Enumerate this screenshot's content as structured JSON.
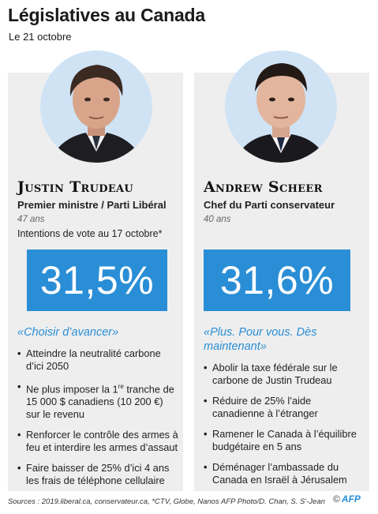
{
  "header": {
    "title": "Législatives au Canada",
    "date": "Le 21 octobre"
  },
  "candidates": [
    {
      "name": "Justin Trudeau",
      "role": "Premier ministre / Parti Libéral",
      "age": "47 ans",
      "intentions_label": "Intentions de vote au 17 octobre*",
      "score": "31,5%",
      "slogan": "«Choisir d’avancer»",
      "pledges": [
        "Atteindre la neutralité carbone d’ici 2050",
        "Ne plus imposer la 1re tranche de 15 000 $ canadiens (10 200 €) sur le revenu",
        "Renforcer le contrôle des armes à feu et interdire les armes d’assaut",
        "Faire baisser de 25% d’ici 4 ans les frais de téléphone cellulaire"
      ]
    },
    {
      "name": "Andrew Scheer",
      "role": "Chef du Parti conservateur",
      "age": "40 ans",
      "score": "31,6%",
      "slogan": "«Plus. Pour vous. Dès maintenant»",
      "pledges": [
        "Abolir la taxe fédérale sur le carbone de Justin Trudeau",
        "Réduire de 25% l’aide canadienne à l’étranger",
        "Ramener le Canada à l’équilibre budgétaire en 5 ans",
        "Déménager l’ambassade du Canada en Israël à Jérusalem"
      ]
    }
  ],
  "footer": {
    "sources": "Sources : 2019.liberal.ca, conservateur.ca, *CTV, Globe, Nanos",
    "credit": "AFP Photo/D. Chan, S. S'-Jean",
    "logo_copyright": "©",
    "logo_text": "AFP"
  },
  "colors": {
    "accent": "#2a8ed6",
    "card_background": "#eeeeee",
    "portrait_background": "#cfe3f5"
  }
}
